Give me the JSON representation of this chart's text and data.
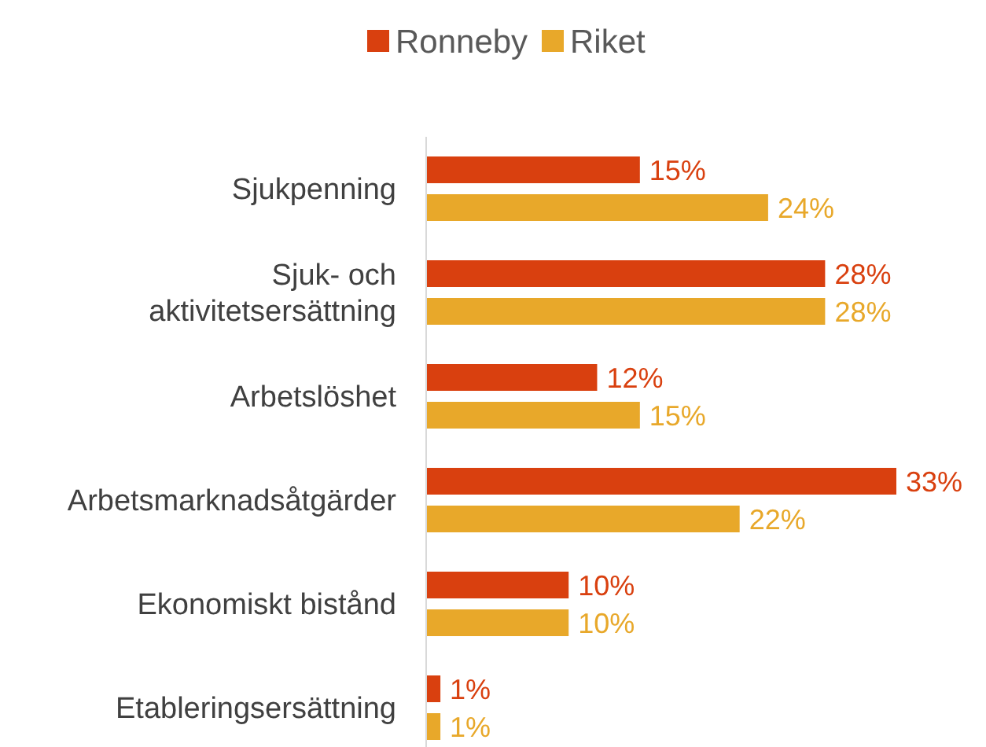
{
  "chart_data": {
    "type": "bar",
    "orientation": "horizontal",
    "legend": "top",
    "categories": [
      "Sjukpenning",
      "Sjuk- och\naktivitetsersättning",
      "Arbetslöshet",
      "Arbetsmarknadsåtgärder",
      "Ekonomiskt bistånd",
      "Etableringsersättning"
    ],
    "series": [
      {
        "name": "Ronneby",
        "color": "#d9400f",
        "values": [
          15,
          28,
          12,
          33,
          10,
          1
        ],
        "value_labels": [
          "15%",
          "28%",
          "12%",
          "33%",
          "10%",
          "1%"
        ]
      },
      {
        "name": "Riket",
        "color": "#e8a82a",
        "values": [
          24,
          28,
          15,
          22,
          10,
          1
        ],
        "value_labels": [
          "24%",
          "28%",
          "15%",
          "22%",
          "10%",
          "1%"
        ]
      }
    ]
  }
}
